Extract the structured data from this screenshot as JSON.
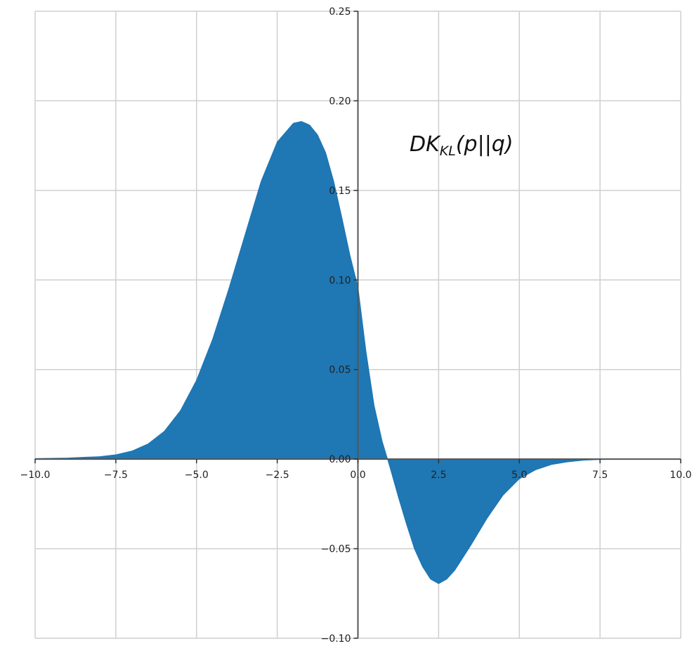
{
  "chart_data": {
    "type": "area",
    "title": "",
    "xlabel": "",
    "ylabel": "",
    "xlim": [
      -10,
      10
    ],
    "ylim": [
      -0.1,
      0.25
    ],
    "grid": true,
    "x_ticks": [
      -10,
      -7.5,
      -5,
      -2.5,
      0,
      2.5,
      5,
      7.5,
      10
    ],
    "x_tick_labels": [
      "−10.0",
      "−7.5",
      "−5.0",
      "−2.5",
      "0.0",
      "2.5",
      "5.0",
      "7.5",
      "10.0"
    ],
    "y_ticks": [
      -0.1,
      -0.05,
      0,
      0.05,
      0.1,
      0.15,
      0.2,
      0.25
    ],
    "y_tick_labels": [
      "−0.10",
      "−0.05",
      "0.00",
      "0.05",
      "0.10",
      "0.15",
      "0.20",
      "0.25"
    ],
    "annotation": {
      "main": "DK",
      "sub": "KL",
      "rest": "(p||q)",
      "x": 1.6,
      "y": 0.172
    },
    "series": [
      {
        "color": "#1f77b4",
        "x": [
          -10,
          -9,
          -8,
          -7.5,
          -7,
          -6.5,
          -6,
          -5.5,
          -5,
          -4.5,
          -4,
          -3.5,
          -3,
          -2.5,
          -2,
          -1.75,
          -1.5,
          -1.25,
          -1,
          -0.75,
          -0.5,
          -0.25,
          0,
          0.25,
          0.5,
          0.75,
          1,
          1.25,
          1.5,
          1.75,
          2,
          2.25,
          2.5,
          2.75,
          3,
          3.5,
          4,
          4.5,
          5,
          5.5,
          6,
          6.5,
          7,
          7.5,
          8,
          9,
          10
        ],
        "y": [
          0.0003,
          0.0006,
          0.0014,
          0.0024,
          0.0045,
          0.0085,
          0.0155,
          0.027,
          0.044,
          0.067,
          0.095,
          0.125,
          0.155,
          0.177,
          0.1875,
          0.1885,
          0.1865,
          0.181,
          0.171,
          0.155,
          0.135,
          0.114,
          0.096,
          0.06,
          0.03,
          0.01,
          -0.005,
          -0.021,
          -0.036,
          -0.05,
          -0.06,
          -0.067,
          -0.0695,
          -0.067,
          -0.062,
          -0.048,
          -0.033,
          -0.02,
          -0.011,
          -0.006,
          -0.003,
          -0.0015,
          -0.0006,
          -0.0002,
          -0.0001,
          0,
          0
        ]
      }
    ]
  }
}
